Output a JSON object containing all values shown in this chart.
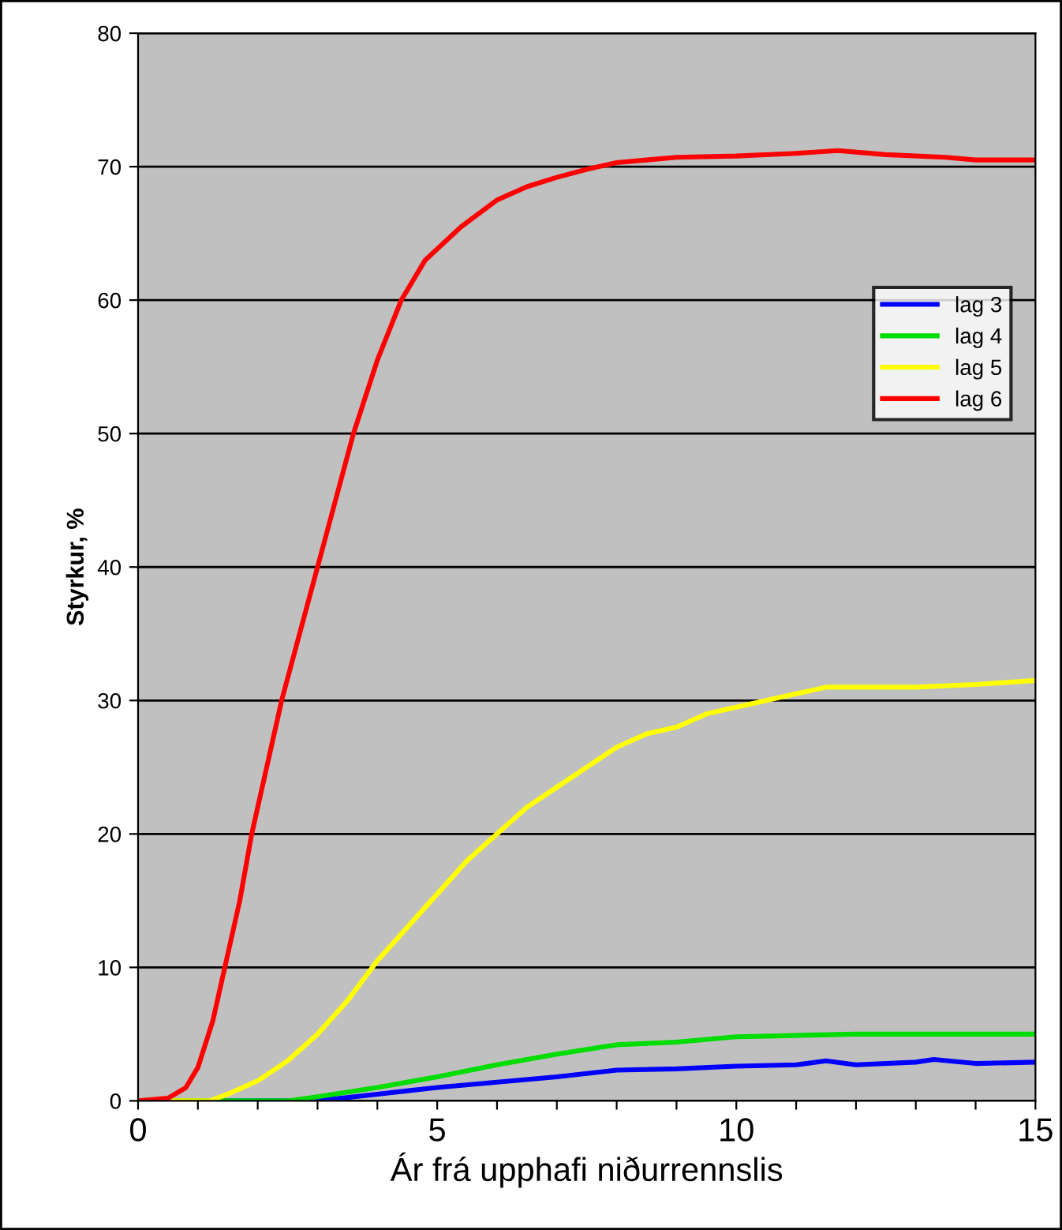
{
  "chart_data": {
    "type": "line",
    "xlabel": "Ár frá upphafi niðurrennslis",
    "ylabel": "Styrkur, %",
    "xlim": [
      0,
      15
    ],
    "ylim": [
      0,
      80
    ],
    "xticks": [
      0,
      {
        "value": 1,
        "label": null
      },
      {
        "value": 2,
        "label": null
      },
      {
        "value": 3,
        "label": null
      },
      {
        "value": 4,
        "label": null
      },
      5,
      {
        "value": 6,
        "label": null
      },
      {
        "value": 7,
        "label": null
      },
      {
        "value": 8,
        "label": null
      },
      {
        "value": 9,
        "label": null
      },
      10,
      {
        "value": 11,
        "label": null
      },
      {
        "value": 12,
        "label": null
      },
      {
        "value": 13,
        "label": null
      },
      {
        "value": 14,
        "label": null
      },
      15
    ],
    "yticks": [
      0,
      10,
      20,
      30,
      40,
      50,
      60,
      70,
      80
    ],
    "grid": "y",
    "legend": "right",
    "marker": "none",
    "line_style": "solid",
    "series": [
      {
        "name": "lag 3",
        "color": "#0000ff",
        "x": [
          0,
          3,
          4,
          5,
          6,
          7,
          8,
          9,
          10,
          11,
          11.5,
          12,
          13,
          13.3,
          14,
          15
        ],
        "values": [
          0,
          0,
          0.5,
          1,
          1.4,
          1.8,
          2.3,
          2.4,
          2.6,
          2.7,
          3,
          2.7,
          2.9,
          3.1,
          2.8,
          2.9
        ]
      },
      {
        "name": "lag 4",
        "color": "#00dd00",
        "x": [
          0,
          2.5,
          3,
          4,
          5,
          6,
          7,
          8,
          9,
          10,
          11,
          12,
          13,
          14,
          15
        ],
        "values": [
          0,
          0,
          0.3,
          1,
          1.8,
          2.7,
          3.5,
          4.2,
          4.4,
          4.8,
          4.9,
          5,
          5,
          5,
          5
        ]
      },
      {
        "name": "lag 5",
        "color": "#ffff00",
        "x": [
          0,
          1.2,
          1.5,
          2,
          2.5,
          3,
          3.5,
          4,
          4.5,
          5,
          5.5,
          6,
          6.5,
          7,
          7.5,
          8,
          8.5,
          9,
          9.5,
          10,
          10.5,
          11,
          11.5,
          12,
          13,
          14,
          15
        ],
        "values": [
          0,
          0,
          0.5,
          1.5,
          3,
          5,
          7.5,
          10.5,
          13,
          15.5,
          18,
          20,
          22,
          23.5,
          25,
          26.5,
          27.5,
          28,
          29,
          29.5,
          30,
          30.5,
          31,
          31,
          31,
          31.2,
          31.5
        ]
      },
      {
        "name": "lag 6",
        "color": "#ff0000",
        "x": [
          0,
          0.5,
          0.8,
          1,
          1.25,
          1.45,
          1.7,
          1.9,
          2.15,
          2.4,
          2.7,
          3,
          3.3,
          3.6,
          4,
          4.4,
          4.8,
          5.4,
          6,
          6.5,
          7,
          7.5,
          8,
          8.5,
          9,
          10,
          11,
          11.7,
          12.5,
          13.5,
          14,
          15
        ],
        "values": [
          0,
          0.2,
          1,
          2.5,
          6,
          10,
          15,
          20,
          25,
          30,
          35,
          40,
          45,
          50,
          55.5,
          60,
          63,
          65.5,
          67.5,
          68.5,
          69.2,
          69.8,
          70.3,
          70.5,
          70.7,
          70.8,
          71,
          71.2,
          70.9,
          70.7,
          70.5,
          70.5
        ]
      }
    ]
  }
}
